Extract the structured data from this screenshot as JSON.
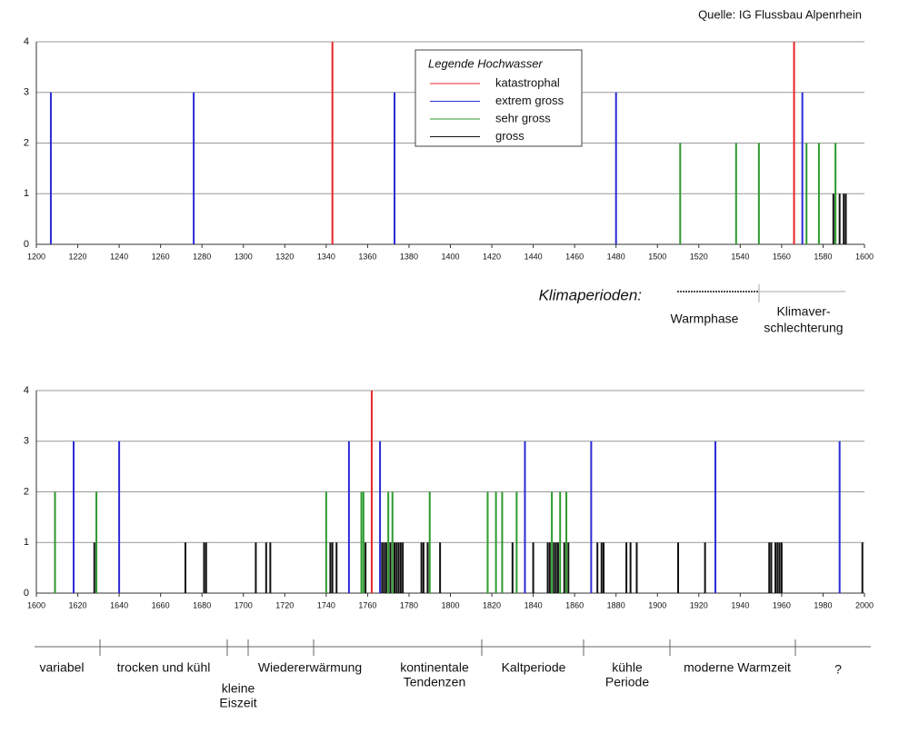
{
  "source": "Quelle: IG Flussbau Alpenrhein",
  "chart_data": [
    {
      "type": "bar",
      "legend_title": "Legende Hochwasser",
      "xlim": [
        1200,
        1600
      ],
      "ylim": [
        0,
        4
      ],
      "yticks": [
        0,
        1,
        2,
        3,
        4
      ],
      "grid": true,
      "xticks": [
        1200,
        1220,
        1240,
        1260,
        1280,
        1300,
        1320,
        1340,
        1360,
        1380,
        1400,
        1420,
        1440,
        1460,
        1480,
        1500,
        1520,
        1540,
        1560,
        1580,
        1600
      ],
      "series": [
        {
          "name": "katastrophal",
          "color": "#e8262b",
          "x": [
            1343,
            1566
          ],
          "values": [
            4,
            4
          ]
        },
        {
          "name": "extrem gross",
          "color": "#2b2bd6",
          "x": [
            1207,
            1276,
            1373,
            1480,
            1570
          ],
          "values": [
            3,
            3,
            3,
            3,
            3
          ]
        },
        {
          "name": "sehr gross",
          "color": "#2e9a2e",
          "x": [
            1511,
            1538,
            1549,
            1572,
            1578,
            1586
          ],
          "values": [
            2,
            2,
            2,
            2,
            2,
            2
          ]
        },
        {
          "name": "gross",
          "color": "#111111",
          "x": [
            1585,
            1588,
            1590,
            1591
          ],
          "values": [
            1,
            1,
            1,
            1
          ]
        }
      ],
      "climate": {
        "label": "Klimaperioden:",
        "periods": [
          [
            "Warmphase"
          ],
          [
            "Klimaver-",
            "schlechterung"
          ]
        ]
      }
    },
    {
      "type": "bar",
      "xlim": [
        1600,
        2000
      ],
      "ylim": [
        0,
        4
      ],
      "yticks": [
        0,
        1,
        2,
        3,
        4
      ],
      "grid": true,
      "xticks": [
        1600,
        1620,
        1640,
        1660,
        1680,
        1700,
        1720,
        1740,
        1760,
        1780,
        1800,
        1820,
        1840,
        1860,
        1880,
        1900,
        1920,
        1940,
        1960,
        1980,
        2000
      ],
      "series": [
        {
          "color": "#e8262b",
          "x": [
            1762
          ],
          "values": [
            4
          ]
        },
        {
          "color": "#2b2bd6",
          "x": [
            1618,
            1640,
            1751,
            1766,
            1836,
            1868,
            1928,
            1988
          ],
          "values": [
            3,
            3,
            3,
            3,
            3,
            3,
            3,
            3
          ]
        },
        {
          "color": "#2e9a2e",
          "x": [
            1609,
            1629,
            1740,
            1757,
            1758,
            1770,
            1772,
            1790,
            1818,
            1822,
            1825,
            1832,
            1849,
            1853,
            1856
          ],
          "values": [
            2,
            2,
            2,
            2,
            2,
            2,
            2,
            2,
            2,
            2,
            2,
            2,
            2,
            2,
            2
          ]
        },
        {
          "color": "#111111",
          "x": [
            1628,
            1672,
            1681,
            1682,
            1706,
            1711,
            1713,
            1742,
            1743,
            1745,
            1759,
            1767,
            1768,
            1769,
            1771,
            1773,
            1774,
            1775,
            1776,
            1777,
            1786,
            1787,
            1789,
            1795,
            1830,
            1840,
            1847,
            1848,
            1850,
            1851,
            1852,
            1855,
            1857,
            1871,
            1873,
            1874,
            1885,
            1887,
            1890,
            1910,
            1923,
            1954,
            1955,
            1957,
            1958,
            1959,
            1960,
            1999
          ],
          "values": [
            1,
            1,
            1,
            1,
            1,
            1,
            1,
            1,
            1,
            1,
            1,
            1,
            1,
            1,
            1,
            1,
            1,
            1,
            1,
            1,
            1,
            1,
            1,
            1,
            1,
            1,
            1,
            1,
            1,
            1,
            1,
            1,
            1,
            1,
            1,
            1,
            1,
            1,
            1,
            1,
            1,
            1,
            1,
            1,
            1,
            1,
            1,
            1
          ]
        }
      ],
      "periods": [
        [
          "variabel"
        ],
        [
          "trocken und kühl"
        ],
        [
          "kleine",
          "Eiszeit"
        ],
        [
          "Wiedererwärmung"
        ],
        [
          "kontinentale",
          "Tendenzen"
        ],
        [
          "Kaltperiode"
        ],
        [
          "kühle",
          "Periode"
        ],
        [
          "moderne Warmzeit"
        ],
        [
          "?"
        ]
      ]
    }
  ]
}
